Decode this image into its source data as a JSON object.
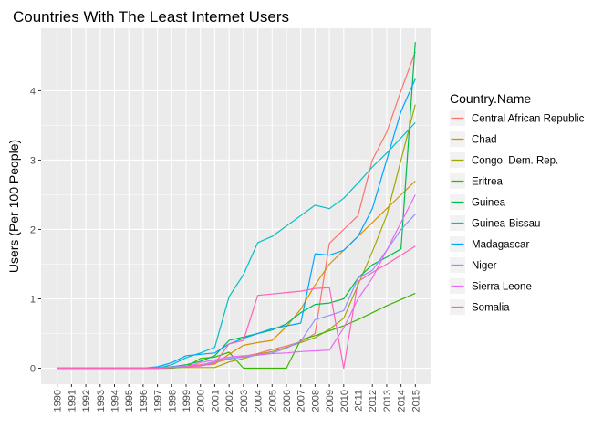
{
  "chart_data": {
    "type": "line",
    "title": "Countries With The Least Internet Users",
    "xlabel": "",
    "ylabel": "Users (Per 100 People)",
    "legend_title": "Country.Name",
    "legend_position": "right",
    "grid": true,
    "x": [
      1990,
      1991,
      1992,
      1993,
      1994,
      1995,
      1996,
      1997,
      1998,
      1999,
      2000,
      2001,
      2002,
      2003,
      2004,
      2005,
      2006,
      2007,
      2008,
      2009,
      2010,
      2011,
      2012,
      2013,
      2014,
      2015
    ],
    "x_ticks": [
      "1990",
      "1991",
      "1992",
      "1993",
      "1994",
      "1995",
      "1996",
      "1997",
      "1998",
      "1999",
      "2000",
      "2001",
      "2002",
      "2003",
      "2004",
      "2005",
      "2006",
      "2007",
      "2008",
      "2009",
      "2010",
      "2011",
      "2012",
      "2013",
      "2014",
      "2015"
    ],
    "y_ticks": [
      "0",
      "1",
      "2",
      "3",
      "4"
    ],
    "ylim": [
      -0.23,
      4.9
    ],
    "series": [
      {
        "name": "Central African Republic",
        "color": "#F8766D",
        "values": [
          0,
          0,
          0,
          0,
          0,
          0,
          0,
          0.01,
          0.02,
          0.03,
          0.05,
          0.08,
          0.13,
          0.17,
          0.21,
          0.27,
          0.32,
          0.38,
          0.5,
          1.8,
          2.0,
          2.2,
          3.0,
          3.4,
          4.0,
          4.56
        ]
      },
      {
        "name": "Chad",
        "color": "#D89000",
        "values": [
          0,
          0,
          0,
          0,
          0,
          0,
          0,
          0,
          0.01,
          0.02,
          0.04,
          0.06,
          0.2,
          0.33,
          0.37,
          0.4,
          0.6,
          0.85,
          1.2,
          1.5,
          1.7,
          1.9,
          2.1,
          2.3,
          2.5,
          2.7
        ]
      },
      {
        "name": "Congo, Dem. Rep.",
        "color": "#A3A500",
        "values": [
          0,
          0,
          0,
          0,
          0,
          0,
          0,
          0,
          0.01,
          0.01,
          0.01,
          0.01,
          0.09,
          0.14,
          0.2,
          0.24,
          0.3,
          0.37,
          0.44,
          0.56,
          0.72,
          1.2,
          1.68,
          2.2,
          3.0,
          3.8
        ]
      },
      {
        "name": "Eritrea",
        "color": "#39B600",
        "values": [
          0,
          0,
          0,
          0,
          0,
          0,
          0,
          0,
          0,
          0.02,
          0.14,
          0.16,
          0.23,
          0,
          0,
          0,
          0,
          0.41,
          0.47,
          0.54,
          0.61,
          0.7,
          0.8,
          0.9,
          0.99,
          1.08
        ]
      },
      {
        "name": "Guinea",
        "color": "#00BB4E",
        "values": [
          0,
          0,
          0,
          0,
          0,
          0,
          0,
          0.01,
          0.02,
          0.05,
          0.1,
          0.18,
          0.4,
          0.45,
          0.5,
          0.55,
          0.64,
          0.8,
          0.92,
          0.94,
          1.0,
          1.3,
          1.49,
          1.6,
          1.72,
          4.7
        ]
      },
      {
        "name": "Guinea-Bissau",
        "color": "#00BFC4",
        "values": [
          0,
          0,
          0,
          0,
          0,
          0,
          0,
          0,
          0.05,
          0.15,
          0.22,
          0.3,
          1.03,
          1.35,
          1.81,
          1.9,
          2.05,
          2.2,
          2.35,
          2.3,
          2.45,
          2.67,
          2.9,
          3.1,
          3.32,
          3.54
        ]
      },
      {
        "name": "Madagascar",
        "color": "#00A5FF",
        "values": [
          0,
          0,
          0,
          0,
          0,
          0,
          0,
          0.02,
          0.08,
          0.18,
          0.2,
          0.22,
          0.35,
          0.43,
          0.5,
          0.57,
          0.61,
          0.65,
          1.65,
          1.63,
          1.7,
          1.9,
          2.3,
          3.0,
          3.7,
          4.17
        ]
      },
      {
        "name": "Niger",
        "color": "#9590FF",
        "values": [
          0,
          0,
          0,
          0,
          0,
          0,
          0,
          0,
          0.02,
          0.03,
          0.04,
          0.1,
          0.14,
          0.16,
          0.19,
          0.22,
          0.29,
          0.39,
          0.7,
          0.76,
          0.83,
          1.3,
          1.41,
          1.7,
          2.0,
          2.22
        ]
      },
      {
        "name": "Sierra Leone",
        "color": "#E76BF3",
        "values": [
          0,
          0,
          0,
          0,
          0,
          0,
          0,
          0,
          0.01,
          0.02,
          0.08,
          0.12,
          0.16,
          0.18,
          0.19,
          0.21,
          0.22,
          0.24,
          0.25,
          0.26,
          0.58,
          1.0,
          1.3,
          1.7,
          2.1,
          2.5
        ]
      },
      {
        "name": "Somalia",
        "color": "#FF62BC",
        "values": [
          0,
          0,
          0,
          0,
          0,
          0,
          0,
          0,
          0.01,
          0.02,
          0.03,
          0.07,
          0.35,
          0.4,
          1.05,
          1.07,
          1.09,
          1.11,
          1.15,
          1.16,
          0,
          1.25,
          1.38,
          1.5,
          1.63,
          1.76
        ]
      }
    ]
  }
}
